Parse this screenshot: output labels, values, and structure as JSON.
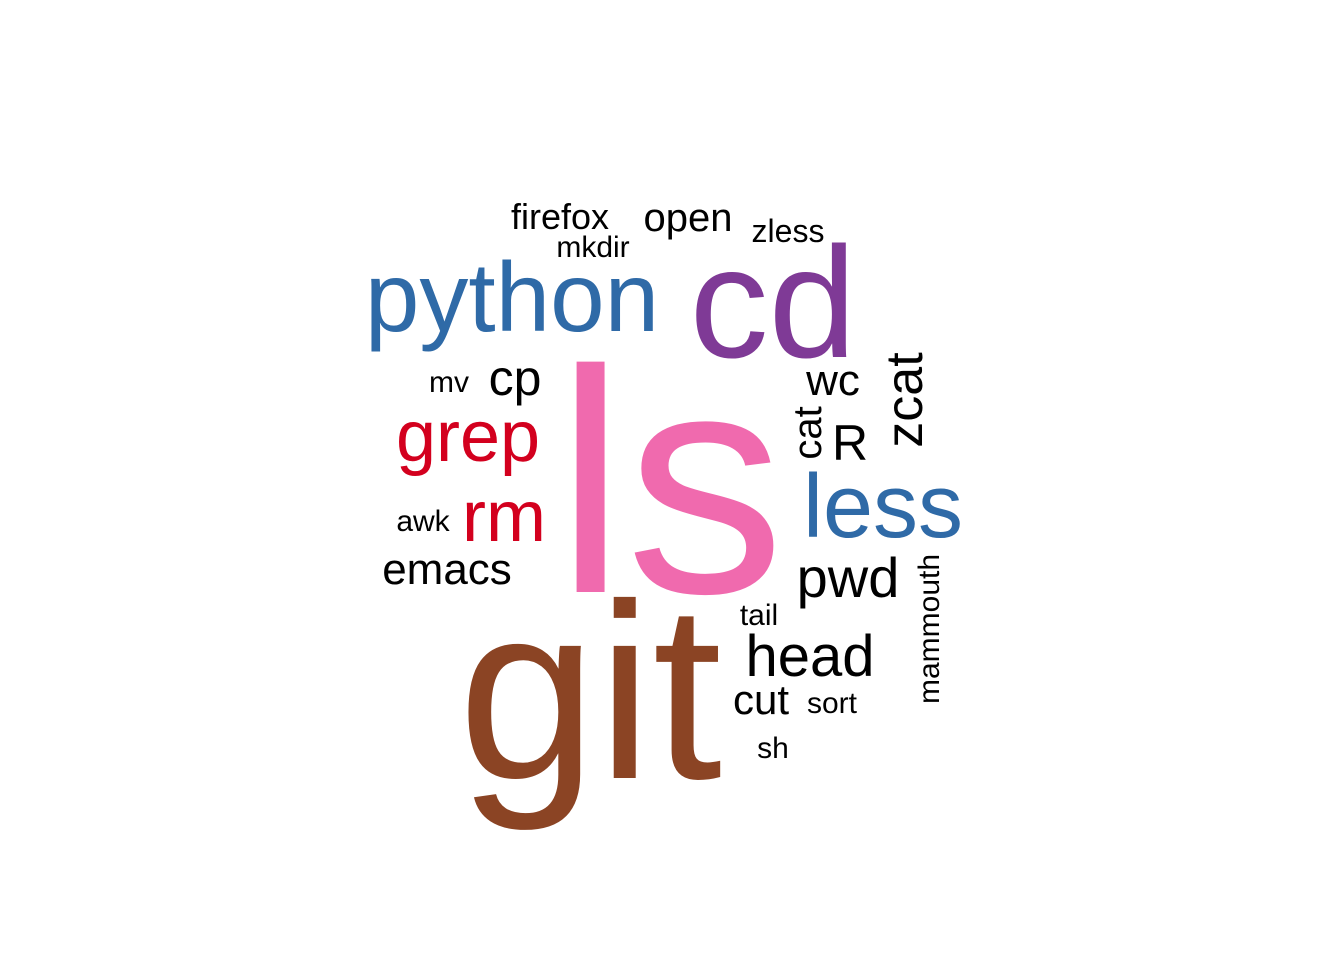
{
  "words": [
    {
      "text": "ls",
      "color": "#f06aae"
    },
    {
      "text": "git",
      "color": "#8b4424"
    },
    {
      "text": "cd",
      "color": "#7f3a96"
    },
    {
      "text": "python",
      "color": "#2f6aa7"
    },
    {
      "text": "less",
      "color": "#2f6aa7"
    },
    {
      "text": "grep",
      "color": "#d3001e"
    },
    {
      "text": "rm",
      "color": "#d3001e"
    },
    {
      "text": "head",
      "color": "#000000"
    },
    {
      "text": "pwd",
      "color": "#000000"
    },
    {
      "text": "zcat",
      "color": "#000000"
    },
    {
      "text": "emacs",
      "color": "#000000"
    },
    {
      "text": "cp",
      "color": "#000000"
    },
    {
      "text": "R",
      "color": "#000000"
    },
    {
      "text": "wc",
      "color": "#000000"
    },
    {
      "text": "cut",
      "color": "#000000"
    },
    {
      "text": "open",
      "color": "#000000"
    },
    {
      "text": "cat",
      "color": "#000000"
    },
    {
      "text": "firefox",
      "color": "#000000"
    },
    {
      "text": "mammouth",
      "color": "#000000"
    },
    {
      "text": "zless",
      "color": "#000000"
    },
    {
      "text": "tail",
      "color": "#000000"
    },
    {
      "text": "sort",
      "color": "#000000"
    },
    {
      "text": "sh",
      "color": "#000000"
    },
    {
      "text": "mkdir",
      "color": "#000000"
    },
    {
      "text": "mv",
      "color": "#000000"
    },
    {
      "text": "awk",
      "color": "#000000"
    }
  ]
}
